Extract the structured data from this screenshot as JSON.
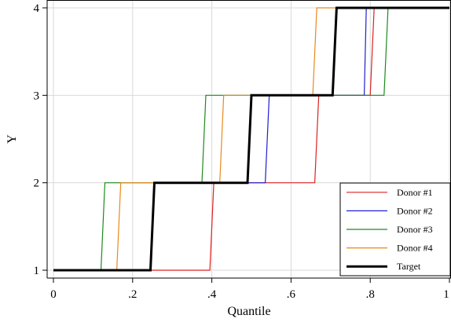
{
  "chart_data": {
    "type": "line",
    "title": "",
    "xlabel": "Quantile",
    "ylabel": "Y",
    "xlim": [
      0,
      1
    ],
    "ylim": [
      1,
      4
    ],
    "xticks": [
      0,
      0.2,
      0.4,
      0.6,
      0.8,
      1
    ],
    "xtick_labels": [
      "0",
      ".2",
      ".4",
      ".6",
      ".8",
      "1"
    ],
    "yticks": [
      1,
      2,
      3,
      4
    ],
    "ytick_labels": [
      "1",
      "2",
      "3",
      "4"
    ],
    "grid": true,
    "legend_position": "bottom-right",
    "series": [
      {
        "name": "Donor #1",
        "color": "#dd2222",
        "width": 1.2,
        "points": [
          [
            0,
            1
          ],
          [
            0.395,
            1
          ],
          [
            0.405,
            2
          ],
          [
            0.66,
            2
          ],
          [
            0.67,
            3
          ],
          [
            0.8,
            3
          ],
          [
            0.81,
            4
          ],
          [
            1,
            4
          ]
        ]
      },
      {
        "name": "Donor #2",
        "color": "#1f1fd0",
        "width": 1.2,
        "points": [
          [
            0,
            1
          ],
          [
            0.245,
            1
          ],
          [
            0.255,
            2
          ],
          [
            0.535,
            2
          ],
          [
            0.545,
            3
          ],
          [
            0.785,
            3
          ],
          [
            0.79,
            4
          ],
          [
            1,
            4
          ]
        ]
      },
      {
        "name": "Donor #3",
        "color": "#1e8a1e",
        "width": 1.2,
        "points": [
          [
            0,
            1
          ],
          [
            0.12,
            1
          ],
          [
            0.13,
            2
          ],
          [
            0.375,
            2
          ],
          [
            0.385,
            3
          ],
          [
            0.835,
            3
          ],
          [
            0.845,
            4
          ],
          [
            1,
            4
          ]
        ]
      },
      {
        "name": "Donor #4",
        "color": "#e8891c",
        "width": 1.2,
        "points": [
          [
            0,
            1
          ],
          [
            0.16,
            1
          ],
          [
            0.17,
            2
          ],
          [
            0.42,
            2
          ],
          [
            0.43,
            3
          ],
          [
            0.655,
            3
          ],
          [
            0.665,
            4
          ],
          [
            1,
            4
          ]
        ]
      },
      {
        "name": "Target",
        "color": "#000000",
        "width": 3,
        "points": [
          [
            0,
            1
          ],
          [
            0.245,
            1
          ],
          [
            0.255,
            2
          ],
          [
            0.49,
            2
          ],
          [
            0.5,
            3
          ],
          [
            0.705,
            3
          ],
          [
            0.715,
            4
          ],
          [
            1,
            4
          ]
        ]
      }
    ]
  }
}
